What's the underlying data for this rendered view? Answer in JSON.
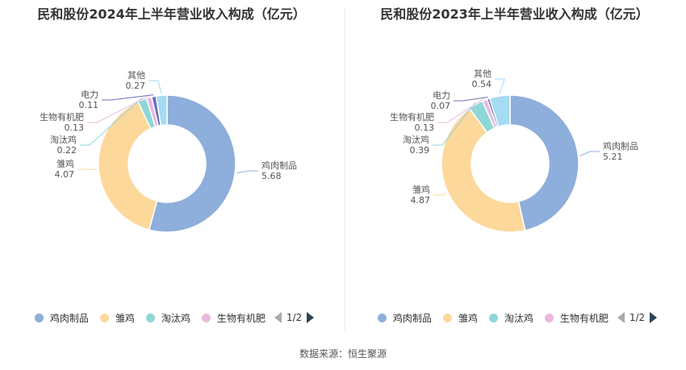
{
  "colors": [
    "#8eaedb",
    "#fdd89b",
    "#8fd7d7",
    "#e7b9dd",
    "#6b6bbd",
    "#a6dbf4"
  ],
  "source": "数据来源：恒生聚源",
  "charts": [
    {
      "title": "民和股份2024年上半年营业收入构成（亿元）",
      "pager": "1/2",
      "chart_data": {
        "type": "pie",
        "categories": [
          "鸡肉制品",
          "雏鸡",
          "淘汰鸡",
          "生物有机肥",
          "电力",
          "其他"
        ],
        "values": [
          5.68,
          4.07,
          0.22,
          0.13,
          0.11,
          0.27
        ],
        "value_labels": [
          "5.68",
          "4.07",
          "0.22",
          "0.13",
          "0.11",
          "0.27"
        ],
        "legend_visible": [
          "鸡肉制品",
          "雏鸡",
          "淘汰鸡",
          "生物有机肥"
        ],
        "legend_position": "bottom"
      }
    },
    {
      "title": "民和股份2023年上半年营业收入构成（亿元）",
      "pager": "1/2",
      "chart_data": {
        "type": "pie",
        "categories": [
          "鸡肉制品",
          "雏鸡",
          "淘汰鸡",
          "生物有机肥",
          "电力",
          "其他"
        ],
        "values": [
          5.21,
          4.87,
          0.39,
          0.13,
          0.07,
          0.54
        ],
        "value_labels": [
          "5.21",
          "4.87",
          "0.39",
          "0.13",
          "0.07",
          "0.54"
        ],
        "legend_visible": [
          "鸡肉制品",
          "雏鸡",
          "淘汰鸡",
          "生物有机肥"
        ],
        "legend_position": "bottom"
      }
    }
  ]
}
